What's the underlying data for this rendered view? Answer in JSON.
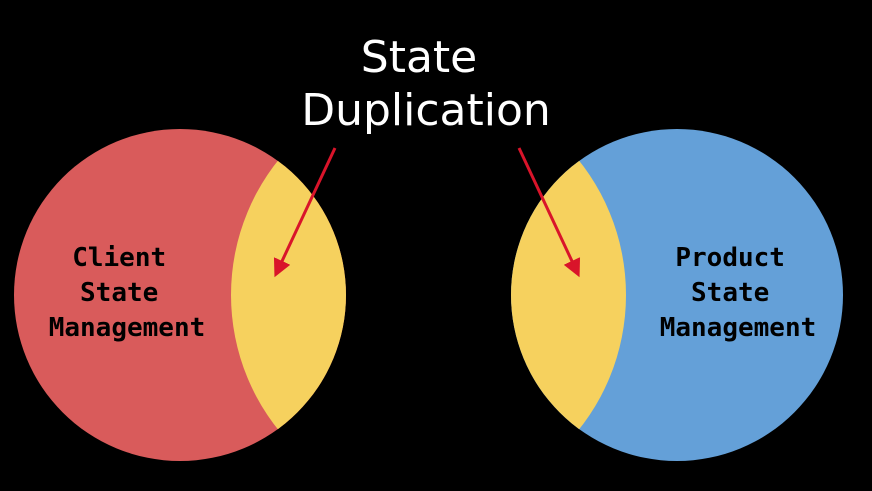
{
  "title": {
    "line1": "State",
    "line2": "Duplication"
  },
  "left_circle": {
    "label_lines": [
      "Client",
      "State",
      "Management"
    ],
    "color": "#d95b5b"
  },
  "right_circle": {
    "label_lines": [
      "Product",
      "State",
      "Management"
    ],
    "color": "#64a0d8"
  },
  "overlap_color": "#f6d15e",
  "arrow_color": "#d9142a",
  "background_color": "#000000"
}
